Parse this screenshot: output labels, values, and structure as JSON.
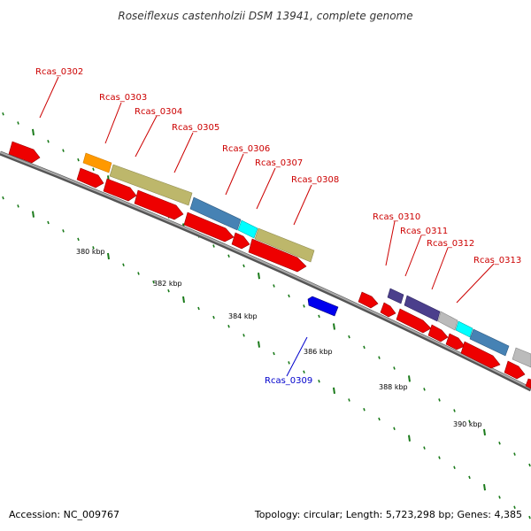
{
  "title": "Roseiflexus castenholzii DSM 13941, complete genome",
  "footer": {
    "accession": "Accession: NC_009767",
    "summary": "Topology: circular; Length: 5,723,298 bp; Genes: 4,385"
  },
  "colors": {
    "backbone": "#888888",
    "tick": "#1a7a1a",
    "forward_label": "#cc0000",
    "reverse_label": "#0000cc",
    "gene_forward": "#ee0000",
    "gene_reverse": "#0000ee",
    "orange": "#ff9900",
    "khaki": "#bdb76b",
    "steelblue": "#4682b4",
    "cyan": "#00ffff",
    "slate": "#4b3f8c",
    "lightgray": "#bbbbbb"
  },
  "kbp_labels": [
    "380 kbp",
    "382 kbp",
    "384 kbp",
    "386 kbp",
    "388 kbp",
    "390 kbp"
  ],
  "gene_labels": [
    {
      "id": "rcas-0302",
      "text": "Rcas_0302",
      "strand": "forward"
    },
    {
      "id": "rcas-0303",
      "text": "Rcas_0303",
      "strand": "forward"
    },
    {
      "id": "rcas-0304",
      "text": "Rcas_0304",
      "strand": "forward"
    },
    {
      "id": "rcas-0305",
      "text": "Rcas_0305",
      "strand": "forward"
    },
    {
      "id": "rcas-0306",
      "text": "Rcas_0306",
      "strand": "forward"
    },
    {
      "id": "rcas-0307",
      "text": "Rcas_0307",
      "strand": "forward"
    },
    {
      "id": "rcas-0308",
      "text": "Rcas_0308",
      "strand": "forward"
    },
    {
      "id": "rcas-0309",
      "text": "Rcas_0309",
      "strand": "reverse"
    },
    {
      "id": "rcas-0310",
      "text": "Rcas_0310",
      "strand": "forward"
    },
    {
      "id": "rcas-0311",
      "text": "Rcas_0311",
      "strand": "forward"
    },
    {
      "id": "rcas-0312",
      "text": "Rcas_0312",
      "strand": "forward"
    },
    {
      "id": "rcas-0313",
      "text": "Rcas_0313",
      "strand": "forward"
    }
  ]
}
